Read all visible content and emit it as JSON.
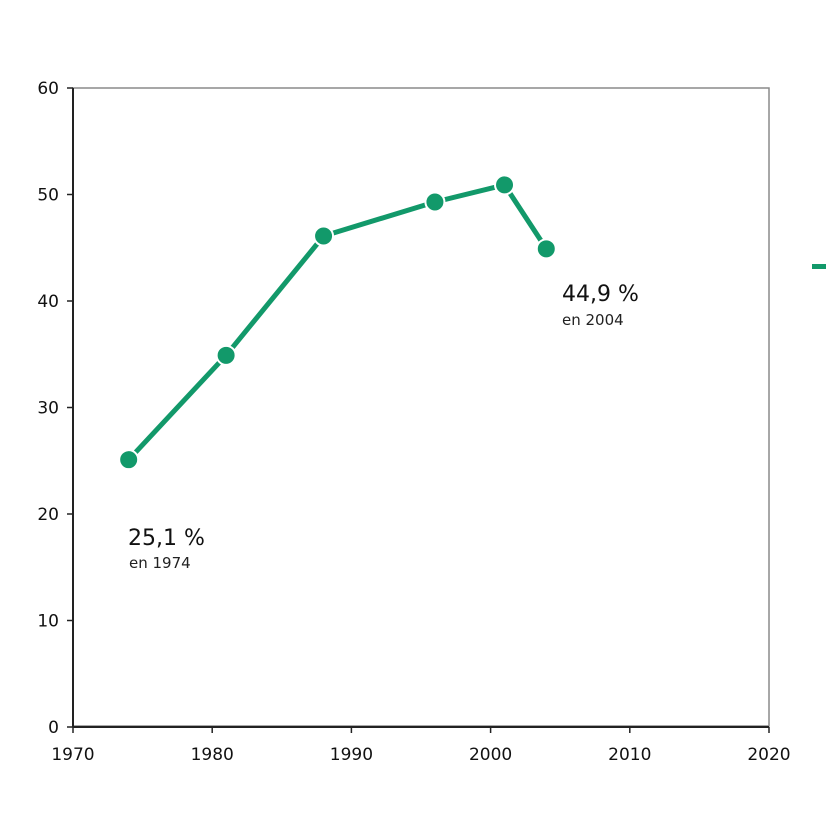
{
  "chart_data": {
    "type": "line",
    "title": "",
    "xlabel": "",
    "ylabel": "",
    "xlim": [
      1970,
      2020
    ],
    "ylim": [
      0,
      60
    ],
    "x_ticks": [
      1970,
      1980,
      1990,
      2000,
      2010,
      2020
    ],
    "y_ticks": [
      0,
      10,
      20,
      30,
      40,
      50,
      60
    ],
    "grid": false,
    "series": [
      {
        "color": "#12996a",
        "x": [
          1974,
          1981,
          1988,
          1996,
          2001,
          2004
        ],
        "y": [
          25.1,
          34.9,
          46.1,
          49.3,
          50.9,
          44.9
        ]
      }
    ],
    "annotations": [
      {
        "value": "25,1 %",
        "sub": "en 1974"
      },
      {
        "value": "44,9 %",
        "sub": "en 2004"
      }
    ]
  }
}
